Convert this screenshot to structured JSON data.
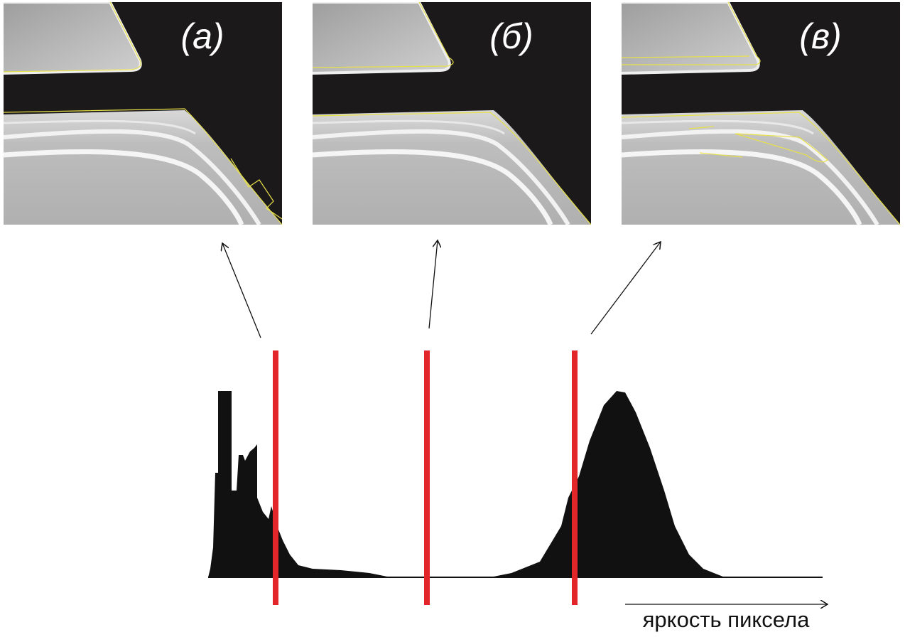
{
  "panels": [
    {
      "label": "(а)"
    },
    {
      "label": "(б)"
    },
    {
      "label": "(в)"
    }
  ],
  "axis_label": "яркость пиксела"
}
